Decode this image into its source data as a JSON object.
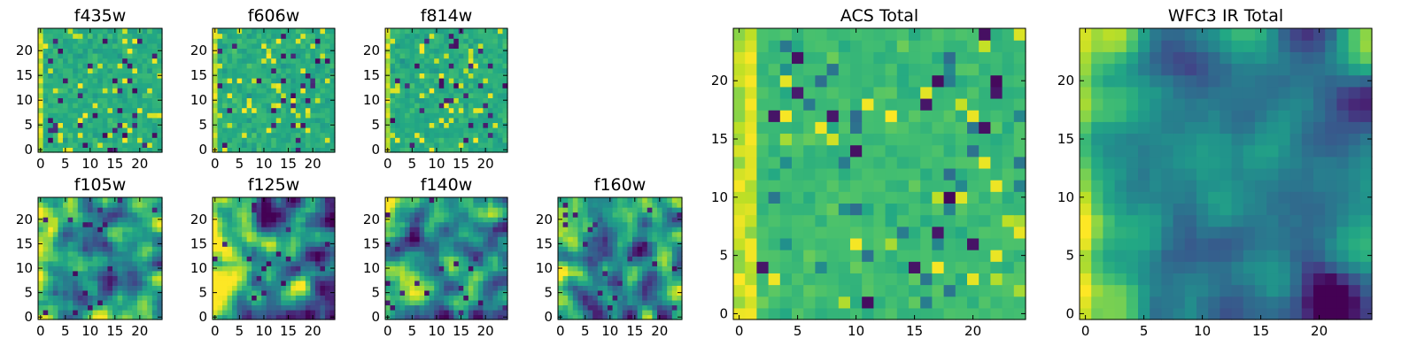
{
  "chart_data": [
    {
      "id": "f435w",
      "type": "heatmap",
      "title": "f435w",
      "grid_size": 25,
      "seed": 11,
      "style": "noise",
      "xticks": [
        0,
        5,
        10,
        15,
        20
      ],
      "yticks": [
        0,
        5,
        10,
        15,
        20
      ],
      "xtick_labels": [
        "0",
        "5",
        "10",
        "15",
        "20"
      ],
      "ytick_labels": [
        "0",
        "5",
        "10",
        "15",
        "20"
      ],
      "xlim": [
        -0.5,
        24.5
      ],
      "ylim": [
        -0.5,
        24.5
      ],
      "colormap": "viridis"
    },
    {
      "id": "f606w",
      "type": "heatmap",
      "title": "f606w",
      "grid_size": 25,
      "seed": 23,
      "style": "noise",
      "xticks": [
        0,
        5,
        10,
        15,
        20
      ],
      "yticks": [
        0,
        5,
        10,
        15,
        20
      ],
      "xtick_labels": [
        "0",
        "5",
        "10",
        "15",
        "20"
      ],
      "ytick_labels": [
        "0",
        "5",
        "10",
        "15",
        "20"
      ],
      "xlim": [
        -0.5,
        24.5
      ],
      "ylim": [
        -0.5,
        24.5
      ],
      "colormap": "viridis"
    },
    {
      "id": "f814w",
      "type": "heatmap",
      "title": "f814w",
      "grid_size": 25,
      "seed": 37,
      "style": "noise",
      "xticks": [
        0,
        5,
        10,
        15,
        20
      ],
      "yticks": [
        0,
        5,
        10,
        15,
        20
      ],
      "xtick_labels": [
        "0",
        "5",
        "10",
        "15",
        "20"
      ],
      "ytick_labels": [
        "0",
        "5",
        "10",
        "15",
        "20"
      ],
      "xlim": [
        -0.5,
        24.5
      ],
      "ylim": [
        -0.5,
        24.5
      ],
      "colormap": "viridis"
    },
    {
      "id": "f105w",
      "type": "heatmap",
      "title": "f105w",
      "grid_size": 25,
      "seed": 41,
      "style": "gradient",
      "xticks": [
        0,
        5,
        10,
        15,
        20
      ],
      "yticks": [
        0,
        5,
        10,
        15,
        20
      ],
      "xtick_labels": [
        "0",
        "5",
        "10",
        "15",
        "20"
      ],
      "ytick_labels": [
        "0",
        "5",
        "10",
        "15",
        "20"
      ],
      "xlim": [
        -0.5,
        24.5
      ],
      "ylim": [
        -0.5,
        24.5
      ],
      "colormap": "viridis"
    },
    {
      "id": "f125w",
      "type": "heatmap",
      "title": "f125w",
      "grid_size": 25,
      "seed": 53,
      "style": "gradient",
      "xticks": [
        0,
        5,
        10,
        15,
        20
      ],
      "yticks": [
        0,
        5,
        10,
        15,
        20
      ],
      "xtick_labels": [
        "0",
        "5",
        "10",
        "15",
        "20"
      ],
      "ytick_labels": [
        "0",
        "5",
        "10",
        "15",
        "20"
      ],
      "xlim": [
        -0.5,
        24.5
      ],
      "ylim": [
        -0.5,
        24.5
      ],
      "colormap": "viridis"
    },
    {
      "id": "f140w",
      "type": "heatmap",
      "title": "f140w",
      "grid_size": 25,
      "seed": 67,
      "style": "gradient",
      "xticks": [
        0,
        5,
        10,
        15,
        20
      ],
      "yticks": [
        0,
        5,
        10,
        15,
        20
      ],
      "xtick_labels": [
        "0",
        "5",
        "10",
        "15",
        "20"
      ],
      "ytick_labels": [
        "0",
        "5",
        "10",
        "15",
        "20"
      ],
      "xlim": [
        -0.5,
        24.5
      ],
      "ylim": [
        -0.5,
        24.5
      ],
      "colormap": "viridis"
    },
    {
      "id": "f160w",
      "type": "heatmap",
      "title": "f160w",
      "grid_size": 25,
      "seed": 79,
      "style": "gradient",
      "xticks": [
        0,
        5,
        10,
        15,
        20
      ],
      "yticks": [
        0,
        5,
        10,
        15,
        20
      ],
      "xtick_labels": [
        "0",
        "5",
        "10",
        "15",
        "20"
      ],
      "ytick_labels": [
        "0",
        "5",
        "10",
        "15",
        "20"
      ],
      "xlim": [
        -0.5,
        24.5
      ],
      "ylim": [
        -0.5,
        24.5
      ],
      "colormap": "viridis"
    },
    {
      "id": "acs_total",
      "type": "heatmap",
      "title": "ACS Total",
      "grid_size": 25,
      "seed": 97,
      "style": "acs",
      "xticks": [
        0,
        5,
        10,
        15,
        20
      ],
      "yticks": [
        0,
        5,
        10,
        15,
        20
      ],
      "xtick_labels": [
        "0",
        "5",
        "10",
        "15",
        "20"
      ],
      "ytick_labels": [
        "0",
        "5",
        "10",
        "15",
        "20"
      ],
      "xlim": [
        -0.5,
        24.5
      ],
      "ylim": [
        -0.5,
        24.5
      ],
      "colormap": "viridis"
    },
    {
      "id": "wfc3_ir_total",
      "type": "heatmap",
      "title": "WFC3 IR Total",
      "grid_size": 25,
      "seed": 113,
      "style": "ir_total",
      "xticks": [
        0,
        5,
        10,
        15,
        20
      ],
      "yticks": [
        0,
        5,
        10,
        15,
        20
      ],
      "xtick_labels": [
        "0",
        "5",
        "10",
        "15",
        "20"
      ],
      "ytick_labels": [
        "0",
        "5",
        "10",
        "15",
        "20"
      ],
      "xlim": [
        -0.5,
        24.5
      ],
      "ylim": [
        -0.5,
        24.5
      ],
      "colormap": "viridis"
    }
  ]
}
